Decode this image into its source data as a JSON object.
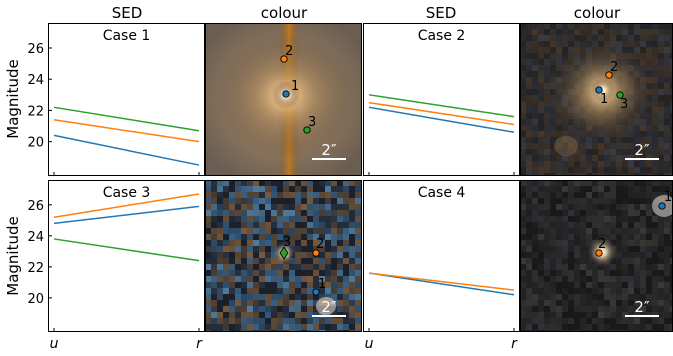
{
  "column_titles": [
    "SED",
    "colour",
    "SED",
    "colour"
  ],
  "ylabel": "Magnitude",
  "scale_bar_label": "2″",
  "series_colors": [
    "#1f77b4",
    "#ff7f0e",
    "#2ca02c"
  ],
  "chart_data": [
    {
      "type": "line",
      "case_label": "Case 1",
      "x": [
        "u",
        "r"
      ],
      "xlabels": [
        "",
        ""
      ],
      "ylim": [
        17.8,
        27.6
      ],
      "yticks": [
        20,
        22,
        24,
        26
      ],
      "series": [
        {
          "values": [
            20.4,
            18.5
          ]
        },
        {
          "values": [
            21.4,
            20.0
          ]
        },
        {
          "values": [
            22.2,
            20.7
          ]
        }
      ]
    },
    {
      "type": "line",
      "case_label": "Case 2",
      "x": [
        "u",
        "r"
      ],
      "xlabels": [
        "",
        ""
      ],
      "ylim": [
        17.8,
        27.6
      ],
      "yticks": [],
      "series": [
        {
          "values": [
            22.2,
            20.6
          ]
        },
        {
          "values": [
            22.5,
            21.1
          ]
        },
        {
          "values": [
            23.0,
            21.6
          ]
        }
      ]
    },
    {
      "type": "line",
      "case_label": "Case 3",
      "x": [
        "u",
        "r"
      ],
      "xlabels": [
        "u",
        "r"
      ],
      "ylim": [
        17.8,
        27.6
      ],
      "yticks": [
        20,
        22,
        24,
        26
      ],
      "series": [
        {
          "values": [
            24.8,
            25.9
          ]
        },
        {
          "values": [
            25.2,
            26.7
          ]
        },
        {
          "values": [
            23.8,
            22.4
          ]
        }
      ]
    },
    {
      "type": "line",
      "case_label": "Case 4",
      "x": [
        "u",
        "r"
      ],
      "xlabels": [
        "u",
        "r"
      ],
      "ylim": [
        17.8,
        27.6
      ],
      "yticks": [],
      "series": [
        {
          "values": [
            21.6,
            20.2
          ]
        },
        {
          "values": [
            21.6,
            20.5
          ]
        }
      ]
    }
  ],
  "colour_panels": [
    {
      "markers": [
        {
          "label": "1"
        },
        {
          "label": "2"
        },
        {
          "label": "3"
        }
      ]
    },
    {
      "markers": [
        {
          "label": "1"
        },
        {
          "label": "2"
        },
        {
          "label": "3"
        }
      ]
    },
    {
      "markers": [
        {
          "label": "1"
        },
        {
          "label": "2"
        },
        {
          "label": "3"
        }
      ]
    },
    {
      "markers": [
        {
          "label": "1"
        },
        {
          "label": "2"
        }
      ]
    }
  ]
}
